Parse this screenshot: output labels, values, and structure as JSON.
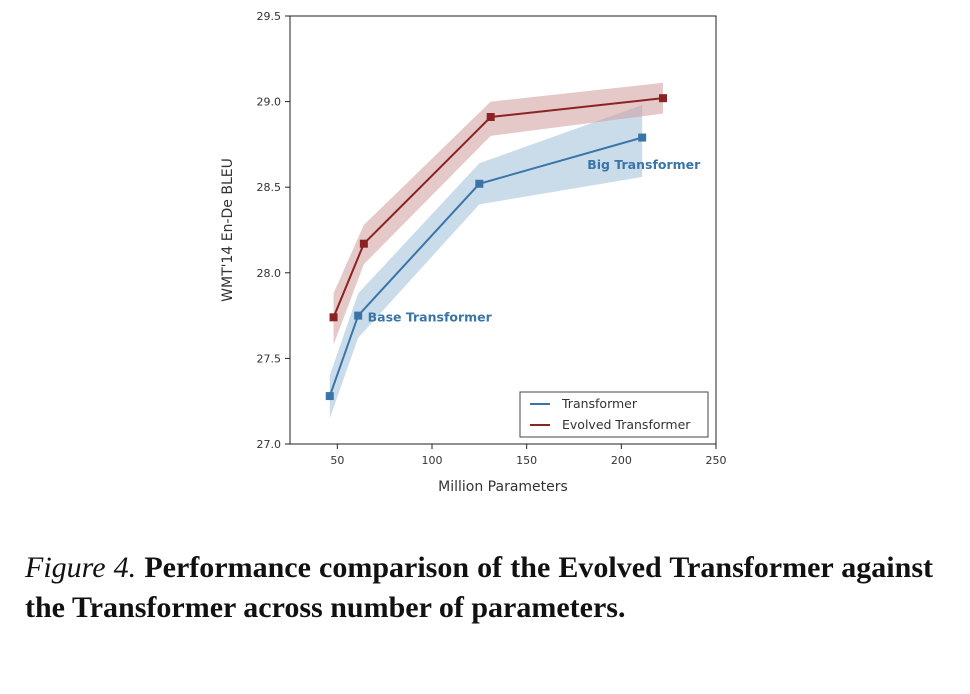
{
  "chart_data": {
    "type": "line",
    "xlabel": "Million Parameters",
    "ylabel": "WMT'14 En-De BLEU",
    "xlim": [
      25,
      250
    ],
    "ylim": [
      27.0,
      29.5
    ],
    "xticks": [
      "50",
      "100",
      "150",
      "200",
      "250"
    ],
    "yticks": [
      "27.0",
      "27.5",
      "28.0",
      "28.5",
      "29.0",
      "29.5"
    ],
    "grid": false,
    "legend_position": "bottom-right",
    "series": [
      {
        "name": "Transformer",
        "color": "#3a75a8",
        "band_color": "#9ebfd8",
        "x": [
          46,
          61,
          125,
          211
        ],
        "y": [
          27.28,
          27.75,
          28.52,
          28.79
        ],
        "lower": [
          27.15,
          27.62,
          28.4,
          28.56
        ],
        "upper": [
          27.4,
          27.88,
          28.64,
          28.98
        ]
      },
      {
        "name": "Evolved Transformer",
        "color": "#8b2323",
        "band_color": "#d09c9c",
        "x": [
          48,
          64,
          131,
          222
        ],
        "y": [
          27.74,
          28.17,
          28.91,
          29.02
        ],
        "lower": [
          27.58,
          28.05,
          28.8,
          28.93
        ],
        "upper": [
          27.88,
          28.28,
          29.0,
          29.11
        ]
      }
    ],
    "annotations": [
      {
        "text": "Base Transformer",
        "color": "#3a75a8",
        "x": 66,
        "y": 27.74
      },
      {
        "text": "Big Transformer",
        "color": "#3a75a8",
        "x": 182,
        "y": 28.63
      }
    ]
  },
  "caption": {
    "label": "Figure 4.",
    "text": "Performance comparison of the Evolved Transformer against the Transformer across number of parameters."
  }
}
